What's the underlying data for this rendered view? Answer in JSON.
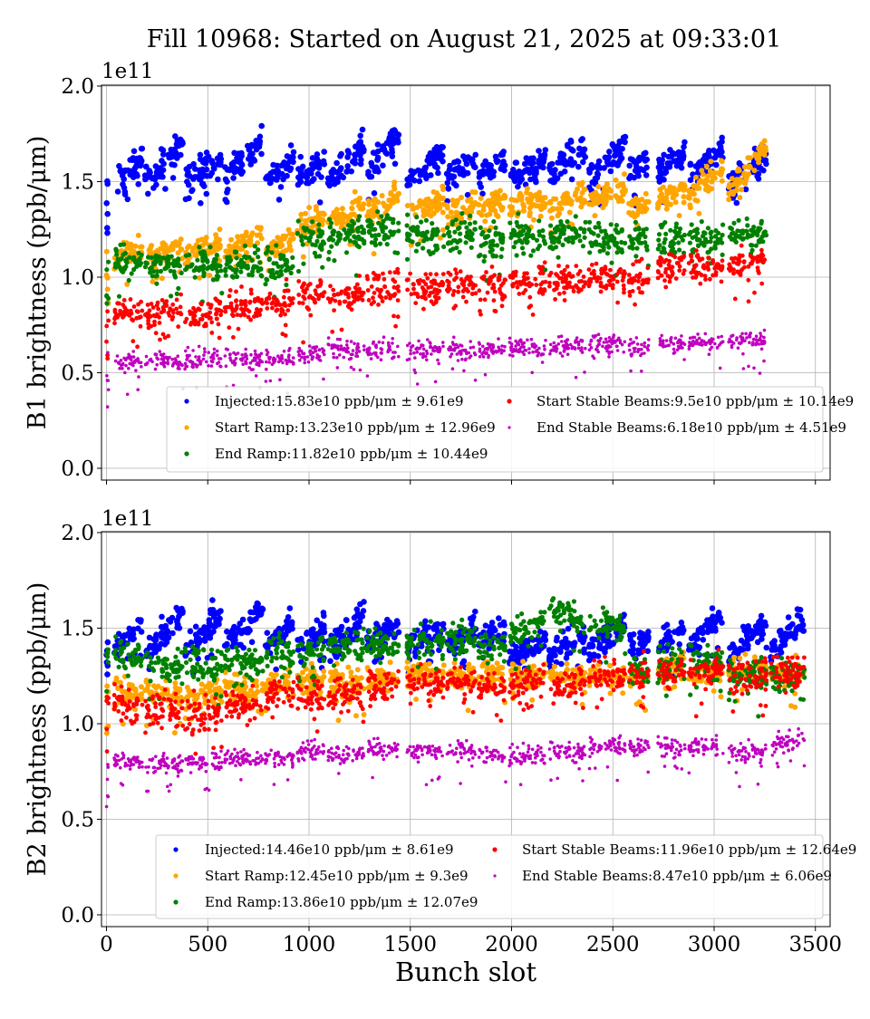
{
  "chart_data": [
    {
      "type": "scatter",
      "title": "Fill 10968: Started on August 21, 2025 at 09:33:01",
      "ylabel": "B1 brightness (ppb/μm)",
      "xlabel": "",
      "scale_label": "1e11",
      "xlim": [
        -25,
        3575
      ],
      "ylim": [
        -0.05,
        2.0
      ],
      "xticks": [
        0,
        500,
        1000,
        1500,
        2000,
        2500,
        3000,
        3500
      ],
      "xtick_labels_shown": false,
      "yticks": [
        "0.0",
        "0.5",
        "1.0",
        "1.5",
        "2.0"
      ],
      "grid": true,
      "legend_position": "lower-center",
      "batches_bunch_slot_ranges": [
        [
          38,
          177
        ],
        [
          190,
          378
        ],
        [
          387,
          570
        ],
        [
          584,
          772
        ],
        [
          785,
          924
        ],
        [
          942,
          1076
        ],
        [
          1094,
          1273
        ],
        [
          1286,
          1443
        ],
        [
          1483,
          1666
        ],
        [
          1680,
          1823
        ],
        [
          1837,
          1971
        ],
        [
          1989,
          2168
        ],
        [
          2186,
          2365
        ],
        [
          2382,
          2561
        ],
        [
          2579,
          2678
        ],
        [
          2722,
          2856
        ],
        [
          2874,
          3045
        ],
        [
          3071,
          3259
        ]
      ],
      "series": [
        {
          "name": "Injected",
          "legend": "Injected:15.83e10 ppb/μm ± 9.61e9",
          "color": "#0000ff",
          "batch_values": [
            [
              1.48,
              1.62
            ],
            [
              1.5,
              1.7
            ],
            [
              1.5,
              1.62
            ],
            [
              1.52,
              1.72
            ],
            [
              1.5,
              1.62
            ],
            [
              1.52,
              1.6
            ],
            [
              1.5,
              1.7
            ],
            [
              1.52,
              1.75
            ],
            [
              1.48,
              1.65
            ],
            [
              1.52,
              1.62
            ],
            [
              1.52,
              1.62
            ],
            [
              1.5,
              1.62
            ],
            [
              1.55,
              1.68
            ],
            [
              1.52,
              1.7
            ],
            [
              1.55,
              1.6
            ],
            [
              1.55,
              1.65
            ],
            [
              1.52,
              1.68
            ],
            [
              1.48,
              1.65
            ]
          ]
        },
        {
          "name": "Start Ramp",
          "legend": "Start Ramp:13.23e10 ppb/μm ± 12.96e9",
          "color": "#ffa500",
          "batch_values": [
            [
              1.1,
              1.16
            ],
            [
              1.1,
              1.16
            ],
            [
              1.12,
              1.18
            ],
            [
              1.15,
              1.22
            ],
            [
              1.15,
              1.2
            ],
            [
              1.25,
              1.32
            ],
            [
              1.28,
              1.36
            ],
            [
              1.33,
              1.42
            ],
            [
              1.34,
              1.4
            ],
            [
              1.33,
              1.39
            ],
            [
              1.35,
              1.41
            ],
            [
              1.35,
              1.42
            ],
            [
              1.37,
              1.44
            ],
            [
              1.39,
              1.46
            ],
            [
              1.36,
              1.4
            ],
            [
              1.4,
              1.46
            ],
            [
              1.42,
              1.56
            ],
            [
              1.45,
              1.68
            ]
          ]
        },
        {
          "name": "End Ramp",
          "legend": "End Ramp:11.82e10 ppb/μm ± 10.44e9",
          "color": "#008000",
          "batch_values": [
            [
              1.08,
              1.08
            ],
            [
              1.07,
              1.07
            ],
            [
              1.07,
              1.07
            ],
            [
              1.07,
              1.07
            ],
            [
              1.05,
              1.05
            ],
            [
              1.2,
              1.2
            ],
            [
              1.22,
              1.22
            ],
            [
              1.25,
              1.25
            ],
            [
              1.22,
              1.22
            ],
            [
              1.22,
              1.22
            ],
            [
              1.2,
              1.2
            ],
            [
              1.22,
              1.22
            ],
            [
              1.22,
              1.22
            ],
            [
              1.2,
              1.2
            ],
            [
              1.2,
              1.2
            ],
            [
              1.2,
              1.2
            ],
            [
              1.2,
              1.2
            ],
            [
              1.22,
              1.24
            ]
          ]
        },
        {
          "name": "Start Stable Beams",
          "legend": "Start Stable Beams:9.5e10 ppb/μm ± 10.14e9",
          "color": "#ff0000",
          "batch_values": [
            [
              0.82,
              0.82
            ],
            [
              0.82,
              0.82
            ],
            [
              0.82,
              0.82
            ],
            [
              0.85,
              0.85
            ],
            [
              0.86,
              0.86
            ],
            [
              0.9,
              0.9
            ],
            [
              0.9,
              0.9
            ],
            [
              0.95,
              0.95
            ],
            [
              0.95,
              0.95
            ],
            [
              0.96,
              0.96
            ],
            [
              0.96,
              0.96
            ],
            [
              0.98,
              0.98
            ],
            [
              0.98,
              0.98
            ],
            [
              1.0,
              1.0
            ],
            [
              0.98,
              0.98
            ],
            [
              1.05,
              1.05
            ],
            [
              1.05,
              1.05
            ],
            [
              1.06,
              1.1
            ]
          ]
        },
        {
          "name": "End Stable Beams",
          "legend": "End Stable Beams:6.18e10 ppb/μm ± 4.51e9",
          "color": "#bf00bf",
          "batch_values": [
            [
              0.56,
              0.56
            ],
            [
              0.56,
              0.56
            ],
            [
              0.57,
              0.57
            ],
            [
              0.57,
              0.57
            ],
            [
              0.57,
              0.57
            ],
            [
              0.6,
              0.6
            ],
            [
              0.62,
              0.62
            ],
            [
              0.62,
              0.62
            ],
            [
              0.62,
              0.62
            ],
            [
              0.62,
              0.62
            ],
            [
              0.62,
              0.62
            ],
            [
              0.63,
              0.63
            ],
            [
              0.64,
              0.64
            ],
            [
              0.65,
              0.65
            ],
            [
              0.63,
              0.63
            ],
            [
              0.66,
              0.66
            ],
            [
              0.66,
              0.66
            ],
            [
              0.67,
              0.67
            ]
          ]
        }
      ]
    },
    {
      "type": "scatter",
      "ylabel": "B2 brightness (ppb/μm)",
      "xlabel": "Bunch slot",
      "scale_label": "1e11",
      "xlim": [
        -25,
        3575
      ],
      "ylim": [
        -0.05,
        2.0
      ],
      "xticks": [
        0,
        500,
        1000,
        1500,
        2000,
        2500,
        3000,
        3500
      ],
      "xtick_labels": [
        "0",
        "500",
        "1000",
        "1500",
        "2000",
        "2500",
        "3000",
        "3500"
      ],
      "yticks": [
        "0.0",
        "0.5",
        "1.0",
        "1.5",
        "2.0"
      ],
      "grid": true,
      "legend_position": "lower-center",
      "batches_bunch_slot_ranges": [
        [
          38,
          177
        ],
        [
          190,
          378
        ],
        [
          387,
          570
        ],
        [
          584,
          772
        ],
        [
          785,
          924
        ],
        [
          942,
          1076
        ],
        [
          1094,
          1273
        ],
        [
          1286,
          1443
        ],
        [
          1483,
          1666
        ],
        [
          1680,
          1823
        ],
        [
          1837,
          1971
        ],
        [
          1989,
          2168
        ],
        [
          2186,
          2365
        ],
        [
          2382,
          2561
        ],
        [
          2579,
          2678
        ],
        [
          2722,
          2856
        ],
        [
          2874,
          3045
        ],
        [
          3071,
          3259
        ],
        [
          3277,
          3447
        ]
      ],
      "series": [
        {
          "name": "Injected",
          "legend": "Injected:14.46e10 ppb/μm ± 8.61e9",
          "color": "#0000ff",
          "batch_values": [
            [
              1.42,
              1.5
            ],
            [
              1.38,
              1.58
            ],
            [
              1.38,
              1.58
            ],
            [
              1.4,
              1.58
            ],
            [
              1.42,
              1.52
            ],
            [
              1.4,
              1.5
            ],
            [
              1.38,
              1.58
            ],
            [
              1.42,
              1.52
            ],
            [
              1.4,
              1.5
            ],
            [
              1.4,
              1.5
            ],
            [
              1.42,
              1.5
            ],
            [
              1.35,
              1.45
            ],
            [
              1.35,
              1.45
            ],
            [
              1.38,
              1.52
            ],
            [
              1.4,
              1.45
            ],
            [
              1.4,
              1.5
            ],
            [
              1.4,
              1.58
            ],
            [
              1.35,
              1.55
            ],
            [
              1.38,
              1.55
            ]
          ]
        },
        {
          "name": "Start Ramp",
          "legend": "Start Ramp:12.45e10 ppb/μm ± 9.3e9",
          "color": "#ffa500",
          "batch_values": [
            [
              1.15,
              1.15
            ],
            [
              1.15,
              1.15
            ],
            [
              1.15,
              1.15
            ],
            [
              1.18,
              1.18
            ],
            [
              1.2,
              1.2
            ],
            [
              1.22,
              1.22
            ],
            [
              1.22,
              1.22
            ],
            [
              1.24,
              1.24
            ],
            [
              1.25,
              1.25
            ],
            [
              1.25,
              1.25
            ],
            [
              1.25,
              1.25
            ],
            [
              1.25,
              1.25
            ],
            [
              1.25,
              1.25
            ],
            [
              1.25,
              1.25
            ],
            [
              1.25,
              1.25
            ],
            [
              1.3,
              1.3
            ],
            [
              1.28,
              1.28
            ],
            [
              1.28,
              1.28
            ],
            [
              1.25,
              1.25
            ]
          ]
        },
        {
          "name": "End Ramp",
          "legend": "End Ramp:13.86e10 ppb/μm ± 12.07e9",
          "color": "#008000",
          "batch_values": [
            [
              1.38,
              1.32
            ],
            [
              1.32,
              1.28
            ],
            [
              1.34,
              1.3
            ],
            [
              1.32,
              1.32
            ],
            [
              1.38,
              1.38
            ],
            [
              1.38,
              1.38
            ],
            [
              1.4,
              1.4
            ],
            [
              1.42,
              1.42
            ],
            [
              1.42,
              1.42
            ],
            [
              1.44,
              1.44
            ],
            [
              1.4,
              1.4
            ],
            [
              1.45,
              1.55
            ],
            [
              1.62,
              1.52
            ],
            [
              1.52,
              1.52
            ],
            [
              1.28,
              1.28
            ],
            [
              1.3,
              1.3
            ],
            [
              1.32,
              1.32
            ],
            [
              1.25,
              1.25
            ],
            [
              1.25,
              1.25
            ]
          ]
        },
        {
          "name": "Start Stable Beams",
          "legend": "Start Stable Beams:11.96e10 ppb/μm ± 12.64e9",
          "color": "#ff0000",
          "batch_values": [
            [
              1.1,
              1.1
            ],
            [
              1.08,
              1.05
            ],
            [
              1.06,
              1.06
            ],
            [
              1.1,
              1.1
            ],
            [
              1.15,
              1.15
            ],
            [
              1.15,
              1.15
            ],
            [
              1.15,
              1.15
            ],
            [
              1.2,
              1.2
            ],
            [
              1.22,
              1.22
            ],
            [
              1.22,
              1.22
            ],
            [
              1.2,
              1.2
            ],
            [
              1.22,
              1.22
            ],
            [
              1.22,
              1.22
            ],
            [
              1.25,
              1.25
            ],
            [
              1.25,
              1.25
            ],
            [
              1.25,
              1.25
            ],
            [
              1.28,
              1.28
            ],
            [
              1.25,
              1.25
            ],
            [
              1.28,
              1.28
            ]
          ]
        },
        {
          "name": "End Stable Beams",
          "legend": "End Stable Beams:8.47e10 ppb/μm ± 6.06e9",
          "color": "#bf00bf",
          "batch_values": [
            [
              0.8,
              0.8
            ],
            [
              0.79,
              0.79
            ],
            [
              0.8,
              0.8
            ],
            [
              0.82,
              0.82
            ],
            [
              0.82,
              0.82
            ],
            [
              0.85,
              0.85
            ],
            [
              0.84,
              0.84
            ],
            [
              0.87,
              0.87
            ],
            [
              0.86,
              0.86
            ],
            [
              0.86,
              0.86
            ],
            [
              0.84,
              0.84
            ],
            [
              0.83,
              0.83
            ],
            [
              0.85,
              0.85
            ],
            [
              0.88,
              0.88
            ],
            [
              0.88,
              0.88
            ],
            [
              0.87,
              0.87
            ],
            [
              0.88,
              0.88
            ],
            [
              0.85,
              0.85
            ],
            [
              0.88,
              0.94
            ]
          ]
        }
      ]
    }
  ]
}
